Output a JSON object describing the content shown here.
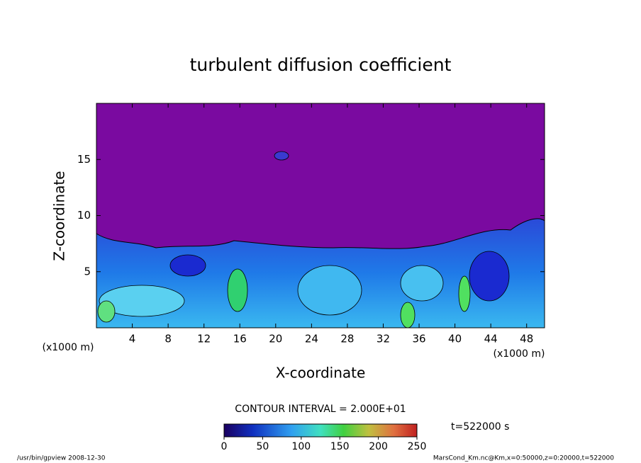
{
  "chart_data": {
    "type": "contour",
    "title": "turbulent diffusion coefficient",
    "x_label": "X-coordinate",
    "y_label": "Z-coordinate",
    "x_units": "(x1000 m)",
    "y_units": "(x1000 m)",
    "xlim": [
      0,
      50
    ],
    "xticks": [
      4,
      8,
      12,
      16,
      20,
      24,
      28,
      32,
      36,
      40,
      44,
      48
    ],
    "ylim": [
      0,
      20
    ],
    "yticks": [
      5,
      10,
      15
    ],
    "contour_interval_label": "CONTOUR INTERVAL = 2.000E+01",
    "colorbar": {
      "lim": [
        0,
        250
      ],
      "ticks": [
        0,
        50,
        100,
        150,
        200,
        250
      ]
    },
    "time_label": "t=522000 s",
    "footer_left": "/usr/bin/gpview  2008-12-30",
    "footer_right": "MarsCond_Km.nc@Km,x=0:50000,z=0:20000,t=522000"
  }
}
